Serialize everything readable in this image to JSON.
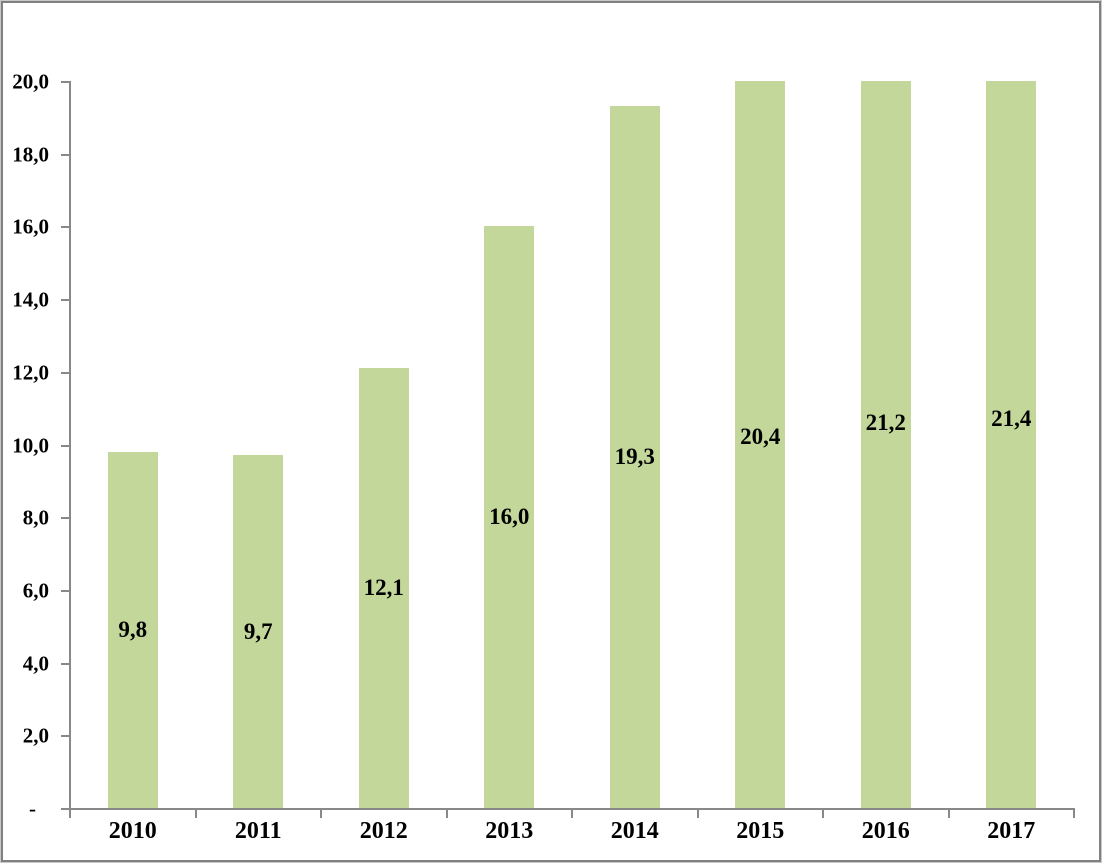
{
  "chart_data": {
    "type": "bar",
    "title": "",
    "xlabel": "",
    "ylabel": "",
    "categories": [
      "2010",
      "2011",
      "2012",
      "2013",
      "2014",
      "2015",
      "2016",
      "2017"
    ],
    "values": [
      9.8,
      9.7,
      12.1,
      16.0,
      19.3,
      20.4,
      21.2,
      21.4
    ],
    "value_labels": [
      "9,8",
      "9,7",
      "12,1",
      "16,0",
      "19,3",
      "20,4",
      "21,2",
      "21,4"
    ],
    "value_label_position": "center-of-bar",
    "ylim": [
      0,
      20
    ],
    "ytick_step": 2,
    "yticks": [
      {
        "value": 0,
        "label": "-"
      },
      {
        "value": 2,
        "label": "2,0"
      },
      {
        "value": 4,
        "label": "4,0"
      },
      {
        "value": 6,
        "label": "6,0"
      },
      {
        "value": 8,
        "label": "8,0"
      },
      {
        "value": 10,
        "label": "10,0"
      },
      {
        "value": 12,
        "label": "12,0"
      },
      {
        "value": 14,
        "label": "14,0"
      },
      {
        "value": 16,
        "label": "16,0"
      },
      {
        "value": 18,
        "label": "18,0"
      },
      {
        "value": 20,
        "label": "20,0"
      }
    ],
    "bars_clipped_at_ymax": true,
    "grid": false,
    "legend": "none",
    "decimal_separator": ",",
    "colors": {
      "bar_fill": "#c4d79b",
      "axis_line": "#888888",
      "text": "#000000",
      "plot_background": "#ffffff",
      "frame_border": "#808080"
    }
  }
}
